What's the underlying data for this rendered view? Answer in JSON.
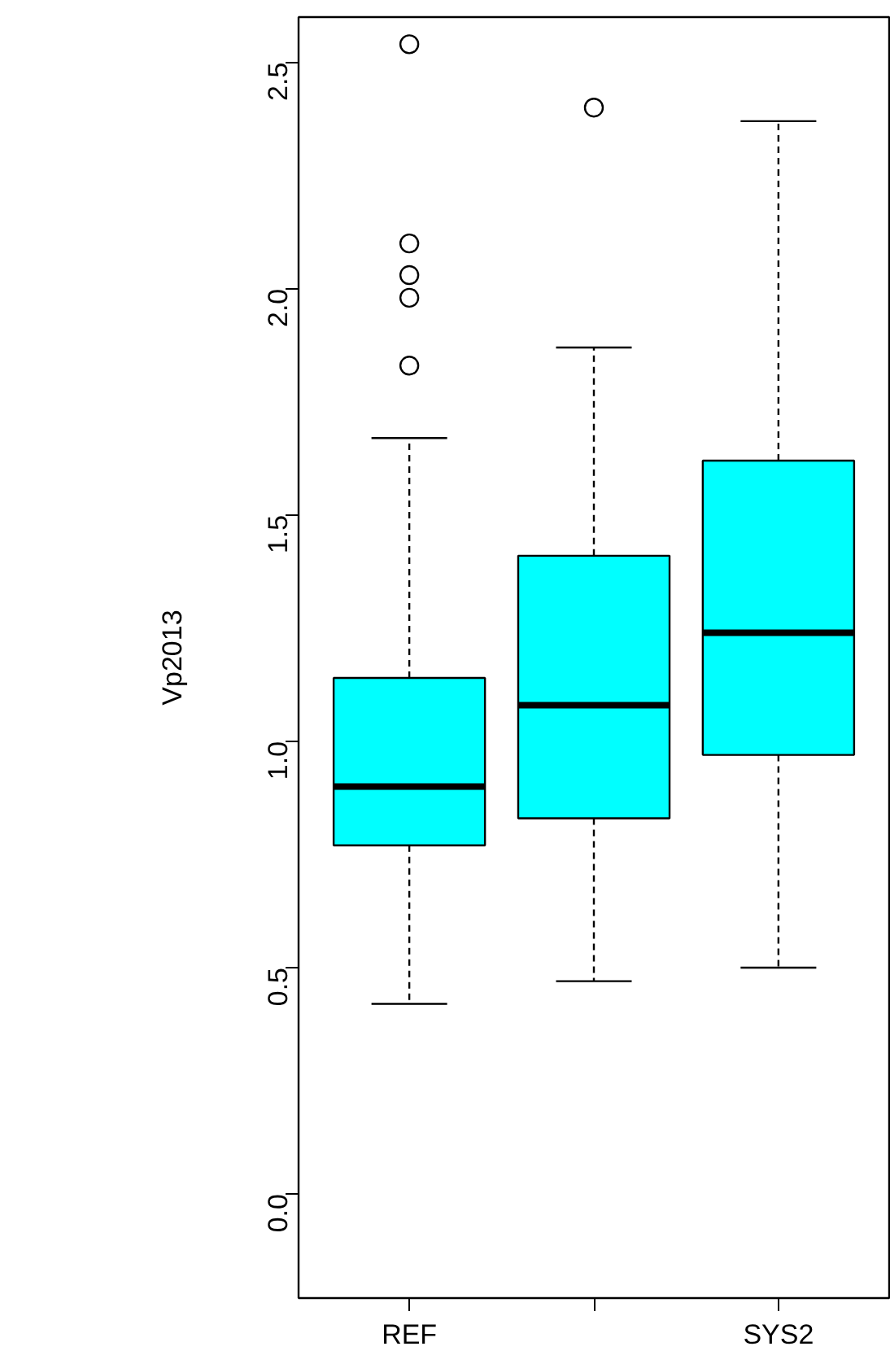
{
  "chart_data": {
    "type": "box",
    "ylabel": "Vp2013",
    "categories": [
      "REF",
      null,
      "SYS2"
    ],
    "color": "#00ffff",
    "ylim": [
      -0.23,
      2.6
    ],
    "yticks": [
      {
        "value": 0,
        "label": "0.0"
      },
      {
        "value": 0.5,
        "label": "0.5"
      },
      {
        "value": 1,
        "label": "1.0"
      },
      {
        "value": 1.5,
        "label": "1.5"
      },
      {
        "value": 2,
        "label": "2.0"
      },
      {
        "value": 2.5,
        "label": "2.5"
      }
    ],
    "grid": false,
    "boxes": [
      {
        "low": 0.42,
        "q1": 0.77,
        "median": 0.9,
        "q3": 1.14,
        "high": 1.67,
        "outliers": [
          1.83,
          1.98,
          2.03,
          2.1,
          2.54
        ]
      },
      {
        "low": 0.47,
        "q1": 0.83,
        "median": 1.08,
        "q3": 1.41,
        "high": 1.87,
        "outliers": [
          2.4
        ]
      },
      {
        "low": 0.5,
        "q1": 0.97,
        "median": 1.24,
        "q3": 1.62,
        "high": 2.37
      }
    ]
  }
}
